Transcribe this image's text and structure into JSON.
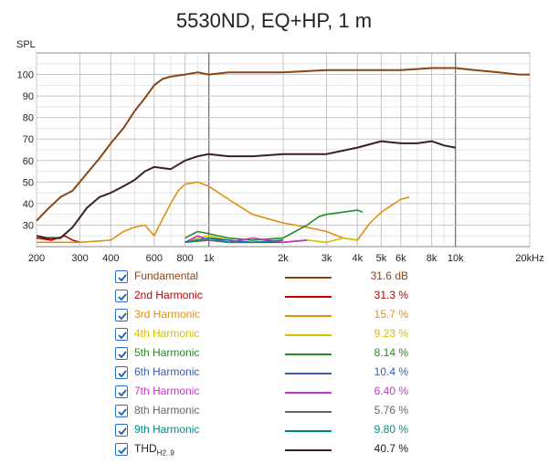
{
  "chart_data": {
    "type": "line",
    "title": "5530ND, EQ+HP, 1 m",
    "ylabel": "SPL",
    "xlabel": "",
    "x_scale": "log",
    "xlim": [
      200,
      20000
    ],
    "ylim": [
      20,
      110
    ],
    "grid": true,
    "x_ticks": [
      {
        "value": 200,
        "label": "200"
      },
      {
        "value": 300,
        "label": "300"
      },
      {
        "value": 400,
        "label": "400"
      },
      {
        "value": 600,
        "label": "600"
      },
      {
        "value": 800,
        "label": "800"
      },
      {
        "value": 1000,
        "label": "1k"
      },
      {
        "value": 2000,
        "label": "2k"
      },
      {
        "value": 3000,
        "label": "3k"
      },
      {
        "value": 4000,
        "label": "4k"
      },
      {
        "value": 5000,
        "label": "5k"
      },
      {
        "value": 6000,
        "label": "6k"
      },
      {
        "value": 8000,
        "label": "8k"
      },
      {
        "value": 10000,
        "label": "10k"
      },
      {
        "value": 20000,
        "label": "20kHz"
      }
    ],
    "y_ticks": [
      {
        "value": 30,
        "label": "30"
      },
      {
        "value": 40,
        "label": "40"
      },
      {
        "value": 50,
        "label": "50"
      },
      {
        "value": 60,
        "label": "60"
      },
      {
        "value": 70,
        "label": "70"
      },
      {
        "value": 80,
        "label": "80"
      },
      {
        "value": 90,
        "label": "90"
      },
      {
        "value": 100,
        "label": "100"
      }
    ],
    "series": [
      {
        "name": "Fundamental",
        "color": "#8b4513",
        "value": "31.6 dB",
        "x": [
          200,
          220,
          250,
          280,
          320,
          360,
          400,
          450,
          500,
          550,
          600,
          650,
          700,
          800,
          900,
          1000,
          1200,
          1500,
          2000,
          3000,
          4000,
          5000,
          6000,
          8000,
          10000,
          12000,
          15000,
          18000,
          20000
        ],
        "y": [
          32,
          37,
          43,
          46,
          54,
          61,
          68,
          75,
          83,
          89,
          95,
          98,
          99,
          100,
          101,
          100,
          101,
          101,
          101,
          102,
          102,
          102,
          102,
          103,
          103,
          102,
          101,
          100,
          100
        ]
      },
      {
        "name": "2nd Harmonic",
        "color": "#c00000",
        "value": "31.3 %",
        "x": [
          200,
          230,
          260,
          280,
          300
        ],
        "y": [
          24,
          23,
          25,
          23,
          22
        ]
      },
      {
        "name": "3rd Harmonic",
        "color": "#e09010",
        "value": "15.7 %",
        "x": [
          200,
          300,
          400,
          450,
          500,
          550,
          600,
          650,
          700,
          750,
          800,
          900,
          1000,
          1200,
          1500,
          2000,
          2500,
          3000,
          3500,
          4000,
          4500,
          5000,
          6000,
          6500
        ],
        "y": [
          22,
          22,
          23,
          27,
          29,
          30,
          25,
          33,
          40,
          46,
          49,
          50,
          48,
          42,
          35,
          31,
          29,
          27,
          24,
          23,
          31,
          36,
          42,
          43
        ]
      },
      {
        "name": "4th Harmonic",
        "color": "#d4c000",
        "value": "9.23 %",
        "x": [
          800,
          900,
          1000,
          1200,
          1500,
          2000,
          2500,
          3000,
          3500,
          4000
        ],
        "y": [
          22,
          24,
          25,
          23,
          22,
          22,
          23,
          22,
          24,
          23
        ]
      },
      {
        "name": "5th Harmonic",
        "color": "#228b22",
        "value": "8.14 %",
        "x": [
          800,
          900,
          1000,
          1200,
          1500,
          2000,
          2500,
          2800,
          3000,
          3500,
          4000,
          4200
        ],
        "y": [
          24,
          27,
          26,
          24,
          23,
          24,
          30,
          34,
          35,
          36,
          37,
          36
        ]
      },
      {
        "name": "6th Harmonic",
        "color": "#3b5ba9",
        "value": "10.4 %",
        "x": [
          800,
          1000,
          1200,
          1500,
          2000,
          2500
        ],
        "y": [
          22,
          24,
          23,
          22,
          22,
          23
        ]
      },
      {
        "name": "7th Harmonic",
        "color": "#cc33cc",
        "value": "6.40 %",
        "x": [
          800,
          900,
          1000,
          1200,
          1500,
          2000,
          2500
        ],
        "y": [
          22,
          25,
          23,
          22,
          24,
          22,
          23
        ]
      },
      {
        "name": "8th Harmonic",
        "color": "#666666",
        "value": "5.76 %",
        "x": [
          800,
          1000,
          1200,
          1500,
          2000
        ],
        "y": [
          22,
          23,
          22,
          22,
          23
        ]
      },
      {
        "name": "9th Harmonic",
        "color": "#008b8b",
        "value": "9.80 %",
        "x": [
          800,
          1000,
          1200,
          1500,
          2000
        ],
        "y": [
          22,
          24,
          22,
          22,
          23
        ]
      },
      {
        "name": "THD",
        "name_sub": "H2..9",
        "color": "#3a2020",
        "value": "40.7 %",
        "x": [
          200,
          220,
          250,
          280,
          320,
          360,
          400,
          450,
          500,
          550,
          600,
          700,
          800,
          900,
          1000,
          1200,
          1500,
          2000,
          2500,
          3000,
          4000,
          5000,
          6000,
          7000,
          8000,
          9000,
          10000
        ],
        "y": [
          25,
          24,
          24,
          29,
          38,
          43,
          45,
          48,
          51,
          55,
          57,
          56,
          60,
          62,
          63,
          62,
          62,
          63,
          63,
          63,
          66,
          69,
          68,
          68,
          69,
          67,
          66
        ]
      }
    ]
  }
}
